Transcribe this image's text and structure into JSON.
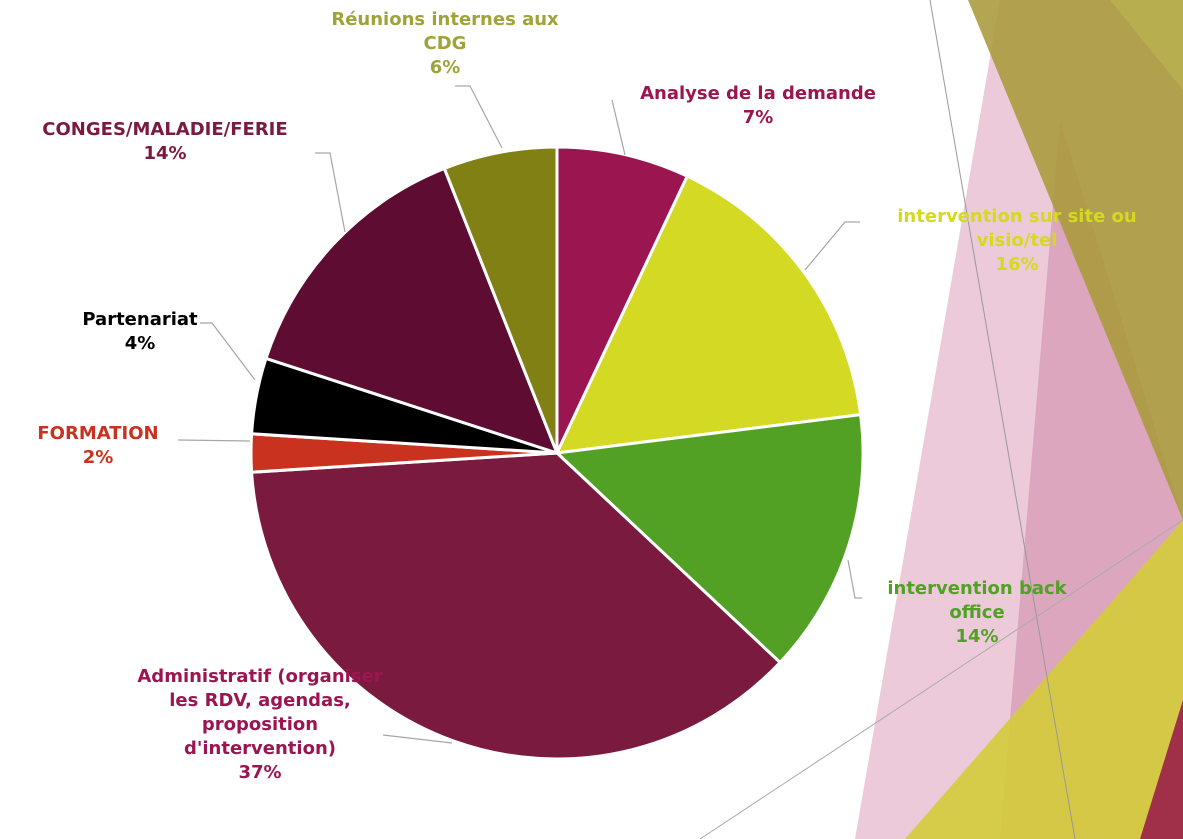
{
  "chart_data": {
    "type": "pie",
    "categories": [
      "Analyse de la demande",
      "intervention sur site ou visio/tel",
      "intervention back office",
      "Administratif (organiser les RDV, agendas, proposition d'intervention)",
      "FORMATION",
      "Partenariat",
      "CONGES/MALADIE/FERIE",
      "Réunions internes aux CDG"
    ],
    "values": [
      7,
      16,
      14,
      37,
      2,
      4,
      14,
      6
    ],
    "value_labels": [
      "7%",
      "16%",
      "14%",
      "37%",
      "2%",
      "4%",
      "14%",
      "6%"
    ],
    "colors": [
      "#9b1650",
      "#d4d923",
      "#52a125",
      "#7a1a3e",
      "#c8321e",
      "#000000",
      "#5e0c32",
      "#808015"
    ],
    "label_colors": [
      "#9b1650",
      "#d4d923",
      "#52a125",
      "#9b1650",
      "#c8321e",
      "#000000",
      "#7a1a3e",
      "#a0a23a"
    ]
  }
}
